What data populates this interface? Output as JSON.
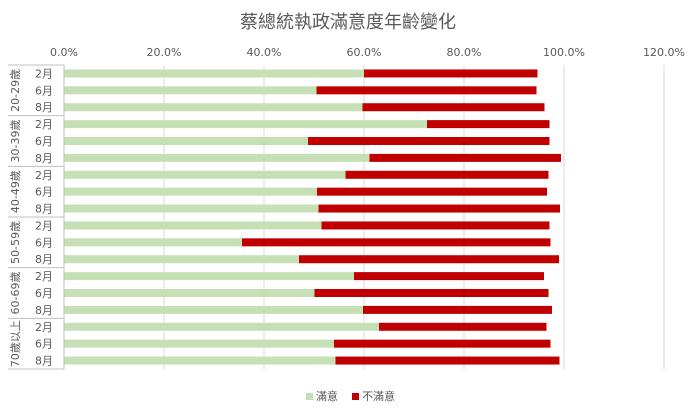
{
  "chart_data": {
    "type": "bar",
    "orientation": "horizontal",
    "stacked": true,
    "title": "蔡總統執政滿意度年齡變化",
    "xlim": [
      0,
      120
    ],
    "x_ticks": [
      "0.0%",
      "20.0%",
      "40.0%",
      "60.0%",
      "80.0%",
      "100.0%",
      "120.0%"
    ],
    "x_tick_values": [
      0,
      20,
      40,
      60,
      80,
      100,
      120
    ],
    "grid": true,
    "legend_position": "bottom",
    "groups": [
      {
        "label": "20-29歲",
        "categories": [
          "2月",
          "6月",
          "8月"
        ]
      },
      {
        "label": "30-39歲",
        "categories": [
          "2月",
          "6月",
          "8月"
        ]
      },
      {
        "label": "40-49歲",
        "categories": [
          "2月",
          "6月",
          "8月"
        ]
      },
      {
        "label": "50-59歲",
        "categories": [
          "2月",
          "6月",
          "8月"
        ]
      },
      {
        "label": "60-69歲",
        "categories": [
          "2月",
          "6月",
          "8月"
        ]
      },
      {
        "label": "70歲以上",
        "categories": [
          "2月",
          "6月",
          "8月"
        ]
      }
    ],
    "series": [
      {
        "name": "滿意",
        "color": "#c5e0b4",
        "values": [
          60.0,
          50.5,
          59.7,
          72.6,
          48.8,
          61.1,
          56.3,
          50.6,
          50.9,
          51.5,
          35.6,
          47.0,
          58.0,
          50.1,
          59.8,
          63.0,
          54.0,
          54.3
        ]
      },
      {
        "name": "不滿意",
        "color": "#c00000",
        "values": [
          34.7,
          44.0,
          36.4,
          24.5,
          48.3,
          38.3,
          40.6,
          46.0,
          48.3,
          45.6,
          61.7,
          52.0,
          38.0,
          46.8,
          37.8,
          33.5,
          43.3,
          44.8
        ]
      }
    ]
  }
}
